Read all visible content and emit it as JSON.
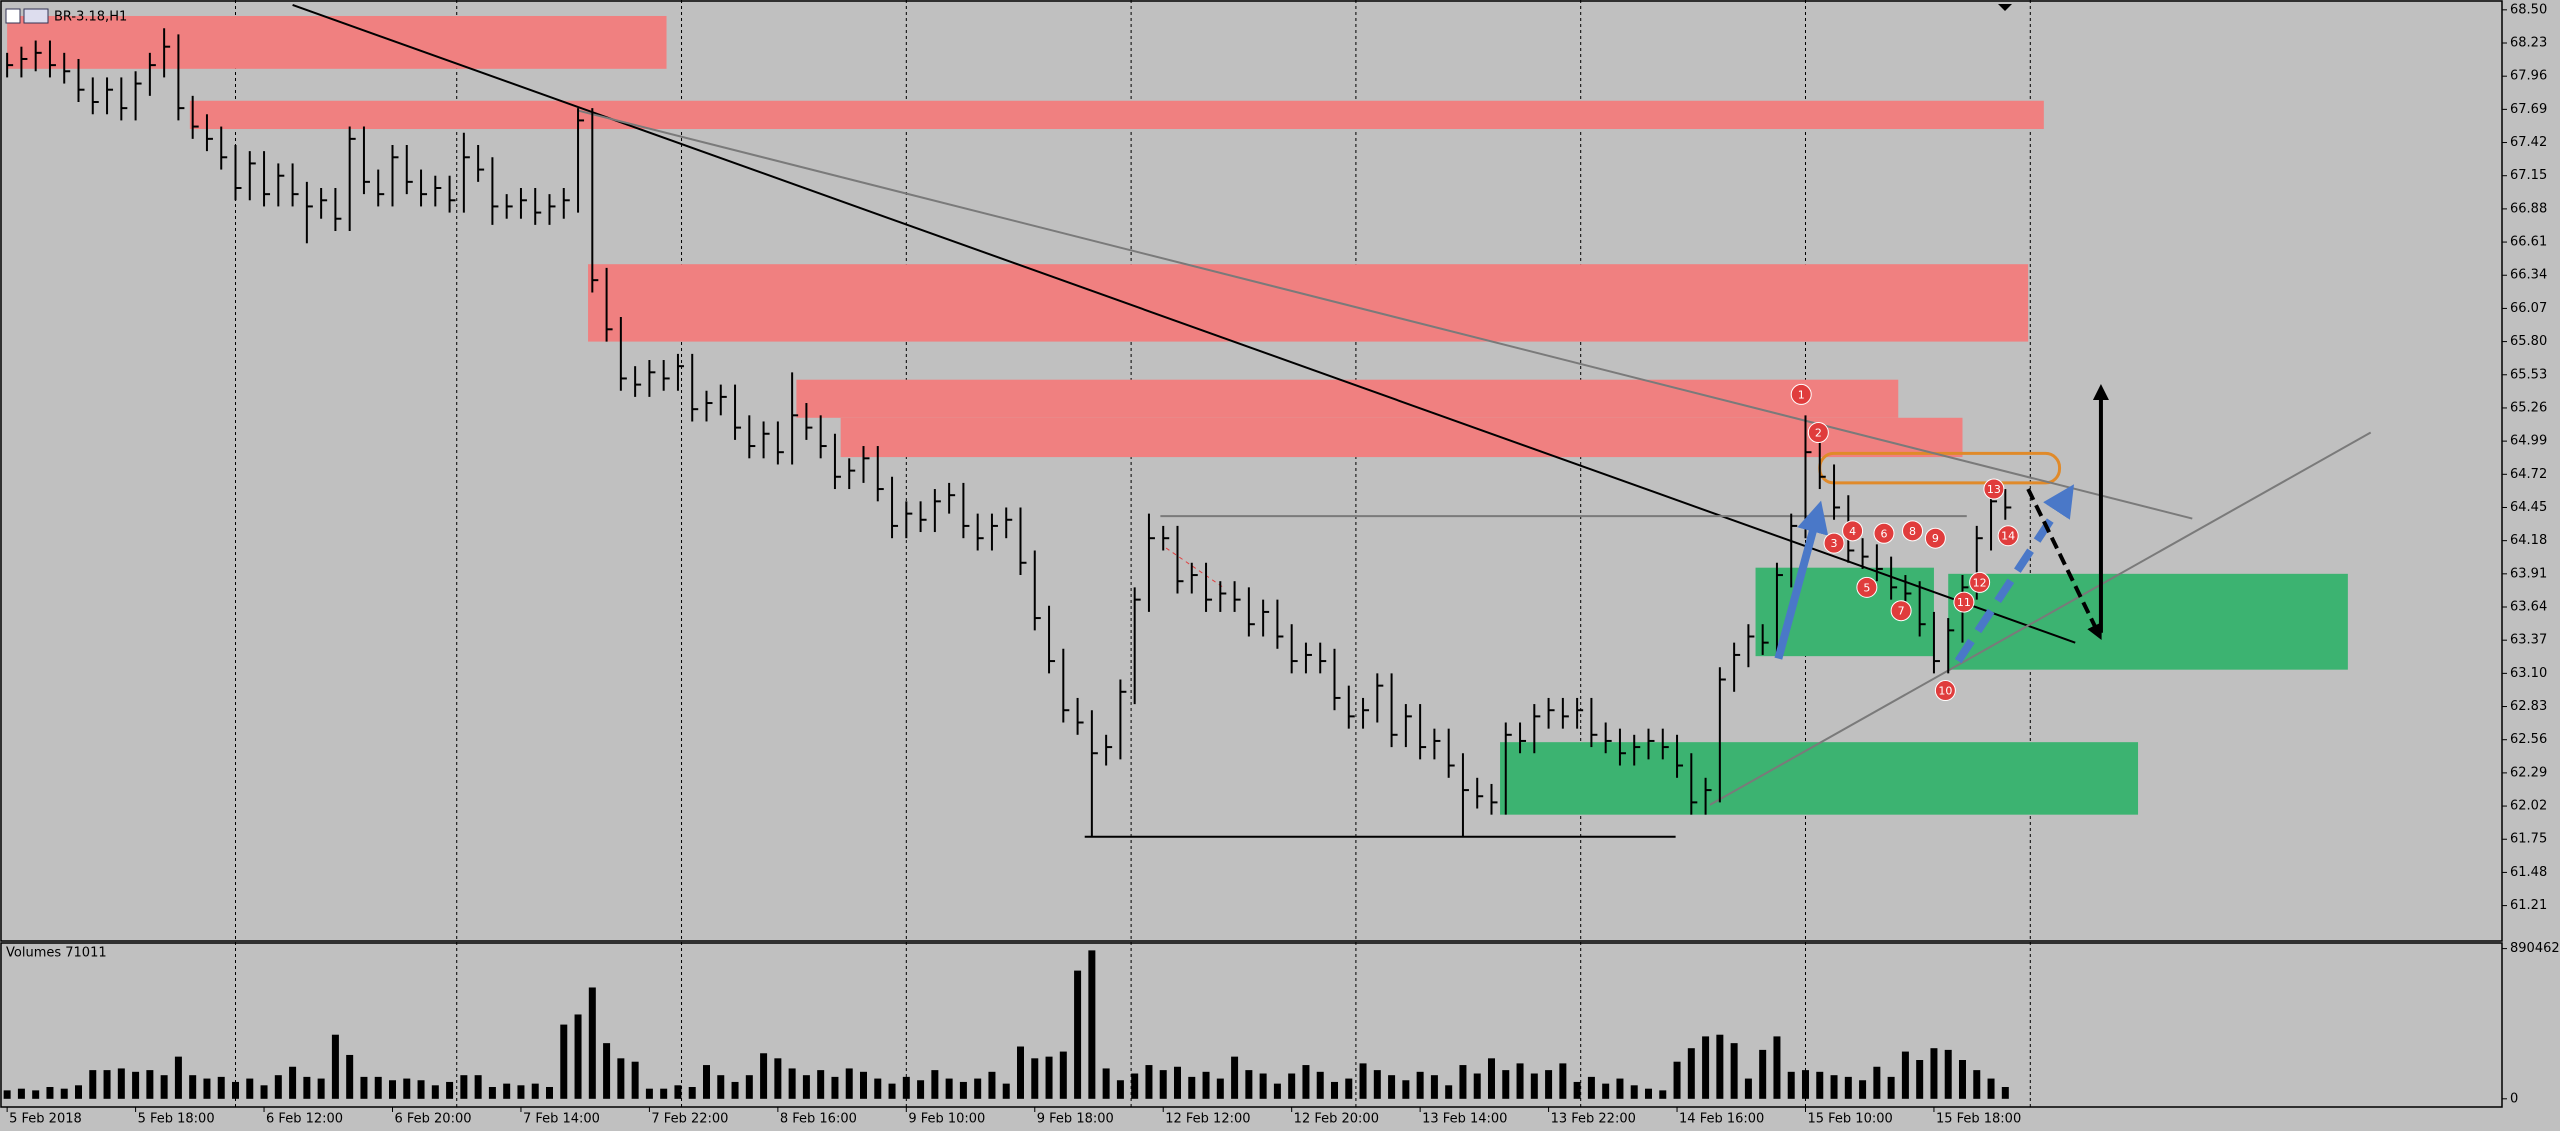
{
  "chart_data": [
    {
      "type": "ohlc",
      "title": "BR-3.18,H1",
      "color": "#000000",
      "background": "#c0c0c0",
      "grid": true,
      "xlim": [
        -0.5,
        174.8
      ],
      "ylim": [
        60.93,
        68.58
      ],
      "xgrid": [
        16,
        31.5,
        47.25,
        63,
        78.75,
        94.5,
        110.25,
        126,
        141.75
      ],
      "yticks": [
        {
          "value": 68.5,
          "label": "68.50"
        },
        68.23,
        67.96,
        67.69,
        67.42,
        67.15,
        66.88,
        66.61,
        66.34,
        66.07,
        {
          "value": 65.8,
          "label": "65.80"
        },
        65.53,
        65.26,
        64.99,
        64.72,
        64.45,
        64.18,
        63.91,
        63.64,
        63.37,
        {
          "value": 63.1,
          "label": "63.10"
        },
        62.83,
        62.56,
        62.29,
        62.02,
        61.75,
        61.48,
        61.21
      ],
      "high": [
        68.15,
        68.2,
        68.25,
        68.25,
        68.15,
        68.1,
        67.95,
        67.95,
        67.95,
        68.0,
        68.15,
        68.35,
        68.3,
        67.8,
        67.65,
        67.55,
        67.4,
        67.35,
        67.35,
        67.25,
        67.25,
        67.1,
        67.05,
        67.05,
        67.55,
        67.55,
        67.2,
        67.4,
        67.4,
        67.2,
        67.15,
        67.15,
        67.5,
        67.4,
        67.3,
        67.0,
        67.05,
        67.05,
        67.0,
        67.05,
        67.7,
        67.7,
        66.4,
        66.0,
        65.6,
        65.65,
        65.65,
        65.7,
        65.7,
        65.4,
        65.45,
        65.45,
        65.2,
        65.15,
        65.15,
        65.55,
        65.3,
        65.2,
        65.05,
        64.85,
        64.95,
        64.95,
        64.7,
        64.5,
        64.5,
        64.6,
        64.65,
        64.65,
        64.4,
        64.4,
        64.45,
        64.45,
        64.1,
        63.65,
        63.3,
        62.9,
        62.8,
        62.6,
        63.05,
        63.8,
        64.4,
        64.3,
        64.3,
        64.0,
        64.0,
        63.85,
        63.85,
        63.8,
        63.7,
        63.7,
        63.5,
        63.35,
        63.35,
        63.3,
        63.0,
        62.9,
        63.1,
        63.1,
        62.85,
        62.85,
        62.65,
        62.65,
        62.45,
        62.25,
        62.2,
        62.7,
        62.7,
        62.85,
        62.9,
        62.9,
        62.9,
        62.9,
        62.7,
        62.65,
        62.6,
        62.65,
        62.65,
        62.6,
        62.45,
        62.25,
        63.15,
        63.35,
        63.5,
        63.5,
        64.0,
        64.4,
        65.2,
        65.0,
        64.8,
        64.55,
        64.2,
        64.15,
        64.05,
        63.9,
        63.85,
        63.6,
        63.55,
        63.9,
        64.3,
        64.6,
        64.6
      ],
      "low": [
        67.95,
        67.95,
        68.0,
        67.95,
        67.9,
        67.75,
        67.65,
        67.65,
        67.6,
        67.6,
        67.8,
        67.95,
        67.6,
        67.45,
        67.35,
        67.2,
        66.95,
        66.95,
        66.9,
        66.9,
        66.9,
        66.6,
        66.8,
        66.7,
        66.7,
        67.0,
        66.9,
        66.9,
        67.0,
        66.9,
        66.9,
        66.85,
        66.85,
        67.1,
        66.75,
        66.8,
        66.8,
        66.75,
        66.75,
        66.8,
        66.85,
        66.2,
        65.8,
        65.4,
        65.35,
        65.35,
        65.4,
        65.4,
        65.15,
        65.15,
        65.2,
        65.0,
        64.85,
        64.85,
        64.8,
        64.8,
        65.0,
        64.85,
        64.6,
        64.6,
        64.65,
        64.5,
        64.2,
        64.2,
        64.25,
        64.25,
        64.4,
        64.2,
        64.1,
        64.1,
        64.2,
        63.9,
        63.45,
        63.1,
        62.7,
        62.6,
        61.77,
        62.35,
        62.4,
        62.85,
        63.6,
        64.1,
        63.75,
        63.75,
        63.6,
        63.6,
        63.6,
        63.4,
        63.4,
        63.3,
        63.1,
        63.1,
        63.1,
        62.8,
        62.65,
        62.65,
        62.7,
        62.5,
        62.5,
        62.4,
        62.4,
        62.25,
        61.77,
        62.0,
        61.95,
        61.95,
        62.45,
        62.45,
        62.65,
        62.65,
        62.65,
        62.5,
        62.45,
        62.35,
        62.35,
        62.4,
        62.4,
        62.25,
        61.95,
        61.95,
        62.05,
        62.95,
        63.15,
        63.25,
        63.25,
        63.8,
        64.2,
        64.6,
        64.35,
        64.0,
        63.95,
        63.85,
        63.7,
        63.65,
        63.4,
        63.1,
        63.1,
        63.35,
        63.7,
        64.1,
        64.35
      ],
      "close": [
        68.05,
        68.1,
        68.15,
        68.05,
        68.0,
        67.85,
        67.75,
        67.85,
        67.7,
        67.9,
        68.05,
        68.2,
        67.7,
        67.55,
        67.45,
        67.3,
        67.05,
        67.25,
        67.0,
        67.15,
        67.0,
        66.9,
        66.95,
        66.8,
        67.45,
        67.1,
        67.0,
        67.3,
        67.1,
        67.0,
        67.05,
        66.95,
        67.3,
        67.2,
        66.9,
        66.9,
        66.95,
        66.85,
        66.9,
        66.95,
        67.6,
        66.3,
        65.9,
        65.5,
        65.45,
        65.55,
        65.5,
        65.6,
        65.25,
        65.3,
        65.35,
        65.1,
        64.95,
        65.05,
        64.9,
        65.2,
        65.1,
        64.95,
        64.7,
        64.75,
        64.85,
        64.6,
        64.3,
        64.4,
        64.35,
        64.5,
        64.55,
        64.3,
        64.2,
        64.3,
        64.35,
        64.0,
        63.55,
        63.2,
        62.8,
        62.7,
        62.45,
        62.5,
        62.95,
        63.7,
        64.2,
        64.2,
        63.85,
        63.9,
        63.7,
        63.75,
        63.7,
        63.5,
        63.6,
        63.4,
        63.2,
        63.25,
        63.2,
        62.9,
        62.75,
        62.8,
        63.0,
        62.6,
        62.75,
        62.5,
        62.55,
        62.35,
        62.15,
        62.1,
        62.05,
        62.6,
        62.55,
        62.75,
        62.8,
        62.75,
        62.8,
        62.6,
        62.55,
        62.45,
        62.5,
        62.55,
        62.5,
        62.35,
        62.05,
        62.15,
        63.05,
        63.25,
        63.4,
        63.35,
        63.9,
        64.3,
        64.9,
        64.7,
        64.45,
        64.1,
        64.05,
        63.95,
        63.8,
        63.75,
        63.5,
        63.2,
        63.45,
        63.8,
        64.2,
        64.5,
        64.45
      ],
      "zones": [
        {
          "x": [
            0,
            46.2
          ],
          "y": [
            68.02,
            68.45
          ],
          "color": "#f08080"
        },
        {
          "x": [
            12.8,
            142.7
          ],
          "y": [
            67.53,
            67.76
          ],
          "color": "#f08080"
        },
        {
          "x": [
            40.7,
            141.6
          ],
          "y": [
            65.8,
            66.43
          ],
          "color": "#f08080"
        },
        {
          "x": [
            55.3,
            132.5
          ],
          "y": [
            65.18,
            65.49
          ],
          "color": "#f08080"
        },
        {
          "x": [
            58.4,
            137
          ],
          "y": [
            64.86,
            65.18
          ],
          "color": "#f08080"
        },
        {
          "x": [
            122.5,
            135
          ],
          "y": [
            63.24,
            63.96
          ],
          "color": "#3cb371"
        },
        {
          "x": [
            136,
            164
          ],
          "y": [
            63.13,
            63.91
          ],
          "color": "#3cb371"
        },
        {
          "x": [
            104.6,
            149.3
          ],
          "y": [
            61.95,
            62.54
          ],
          "color": "#3cb371"
        },
        {
          "x": [
            127,
            143.8
          ],
          "y": [
            64.65,
            64.89
          ],
          "color": "#e08a2a",
          "outline": true
        }
      ],
      "lines": [
        {
          "from": [
            20.0,
            68.54
          ],
          "to": [
            144.9,
            63.35
          ],
          "color": "#000000",
          "width": 2
        },
        {
          "from": [
            40.0,
            67.68
          ],
          "to": [
            153.1,
            64.36
          ],
          "color": "#7a7a7a",
          "width": 2
        },
        {
          "from": [
            119.3,
            62.03
          ],
          "to": [
            165.6,
            65.06
          ],
          "color": "#7a7a7a",
          "width": 2
        },
        {
          "from": [
            80.8,
            64.38
          ],
          "to": [
            137.3,
            64.38
          ],
          "color": "#7a7a7a",
          "width": 2
        },
        {
          "from": [
            75.5,
            61.77
          ],
          "to": [
            116.9,
            61.77
          ],
          "color": "#000000",
          "width": 2
        },
        {
          "from": [
            81.2,
            64.12
          ],
          "to": [
            85.2,
            63.8
          ],
          "color": "#e04040",
          "width": 1,
          "dash": true
        }
      ],
      "arrows": [
        {
          "from": [
            124.1,
            63.22
          ],
          "to": [
            126.8,
            64.38
          ],
          "color": "#4a78c8",
          "width": 8
        },
        {
          "from": [
            136.7,
            63.2
          ],
          "to": [
            144.2,
            64.53
          ],
          "color": "#4a78c8",
          "width": 8,
          "dash": true
        },
        {
          "from": [
            141.6,
            64.6
          ],
          "to": [
            146.5,
            63.43
          ],
          "color": "#000000",
          "width": 4,
          "dash": true
        },
        {
          "from": [
            146.7,
            63.43
          ],
          "to": [
            146.7,
            65.39
          ],
          "color": "#000000",
          "width": 4
        }
      ],
      "markers": [
        {
          "label": "1",
          "x": 125.7,
          "y": 65.37
        },
        {
          "label": "2",
          "x": 126.9,
          "y": 65.06
        },
        {
          "label": "3",
          "x": 128.0,
          "y": 64.16
        },
        {
          "label": "4",
          "x": 129.3,
          "y": 64.26
        },
        {
          "label": "5",
          "x": 130.3,
          "y": 63.8
        },
        {
          "label": "6",
          "x": 131.5,
          "y": 64.24
        },
        {
          "label": "7",
          "x": 132.7,
          "y": 63.61
        },
        {
          "label": "8",
          "x": 133.5,
          "y": 64.26
        },
        {
          "label": "9",
          "x": 135.1,
          "y": 64.2
        },
        {
          "label": "10",
          "x": 135.8,
          "y": 62.96
        },
        {
          "label": "11",
          "x": 137.1,
          "y": 63.68
        },
        {
          "label": "12",
          "x": 138.2,
          "y": 63.84
        },
        {
          "label": "13",
          "x": 139.2,
          "y": 64.6
        },
        {
          "label": "14",
          "x": 140.2,
          "y": 64.22
        }
      ],
      "marker_color": "#e03c3c"
    },
    {
      "type": "volume",
      "title": "Volumes 71011",
      "color": "#000000",
      "xlim": [
        -0.5,
        174.8
      ],
      "ylim": [
        -48600,
        923700
      ],
      "yticks": [
        890462,
        0
      ],
      "xticks": [
        {
          "value": 0,
          "label": "5 Feb 2018"
        },
        {
          "value": 9,
          "label": "5 Feb 18:00"
        },
        {
          "value": 18,
          "label": "6 Feb 12:00"
        },
        {
          "value": 27,
          "label": "6 Feb 20:00"
        },
        {
          "value": 36,
          "label": "7 Feb 14:00"
        },
        {
          "value": 45,
          "label": "7 Feb 22:00"
        },
        {
          "value": 54,
          "label": "8 Feb 16:00"
        },
        {
          "value": 63,
          "label": "9 Feb 10:00"
        },
        {
          "value": 72,
          "label": "9 Feb 18:00"
        },
        {
          "value": 81,
          "label": "12 Feb 12:00"
        },
        {
          "value": 90,
          "label": "12 Feb 20:00"
        },
        {
          "value": 99,
          "label": "13 Feb 14:00"
        },
        {
          "value": 108,
          "label": "13 Feb 22:00"
        },
        {
          "value": 117,
          "label": "14 Feb 16:00"
        },
        {
          "value": 126,
          "label": "15 Feb 10:00"
        },
        {
          "value": 135,
          "label": "15 Feb 18:00"
        }
      ],
      "values": [
        50000,
        60000,
        50000,
        70000,
        60000,
        80000,
        170000,
        170000,
        180000,
        160000,
        170000,
        140000,
        250000,
        140000,
        120000,
        130000,
        100000,
        120000,
        80000,
        140000,
        190000,
        130000,
        120000,
        380000,
        260000,
        130000,
        130000,
        110000,
        120000,
        110000,
        80000,
        100000,
        140000,
        140000,
        70000,
        90000,
        80000,
        90000,
        70000,
        440000,
        500000,
        660000,
        330000,
        240000,
        220000,
        60000,
        60000,
        80000,
        70000,
        200000,
        140000,
        100000,
        140000,
        270000,
        240000,
        180000,
        140000,
        170000,
        130000,
        180000,
        160000,
        120000,
        90000,
        130000,
        110000,
        170000,
        120000,
        100000,
        120000,
        160000,
        90000,
        310000,
        240000,
        250000,
        280000,
        760000,
        880000,
        180000,
        110000,
        150000,
        200000,
        170000,
        190000,
        130000,
        160000,
        120000,
        250000,
        170000,
        150000,
        90000,
        150000,
        200000,
        160000,
        100000,
        120000,
        210000,
        170000,
        140000,
        110000,
        160000,
        140000,
        80000,
        200000,
        150000,
        240000,
        170000,
        210000,
        150000,
        170000,
        210000,
        100000,
        130000,
        90000,
        120000,
        80000,
        60000,
        50000,
        220000,
        300000,
        370000,
        380000,
        330000,
        120000,
        290000,
        370000,
        160000,
        170000,
        160000,
        140000,
        130000,
        110000,
        190000,
        130000,
        280000,
        230000,
        300000,
        290000,
        230000,
        170000,
        120000,
        70000
      ]
    }
  ]
}
